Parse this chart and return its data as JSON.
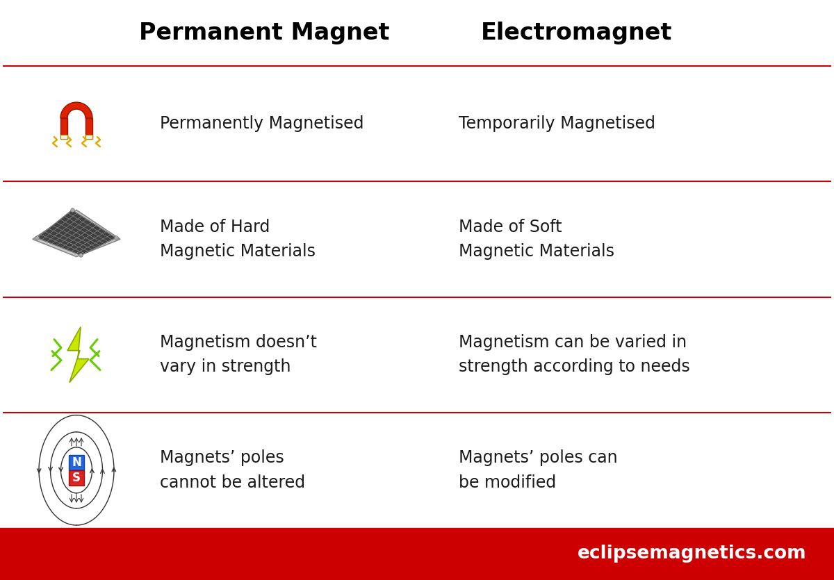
{
  "title_left": "Permanent Magnet",
  "title_right": "Electromagnet",
  "background_color": "#ffffff",
  "footer_bg_color": "#cc0000",
  "footer_text": "eclipsemagnetics.com",
  "footer_text_color": "#ffffff",
  "separator_color": "#cc0000",
  "title_color": "#000000",
  "text_color": "#1a1a1a",
  "rows": [
    {
      "pm_text": "Permanently Magnetised",
      "em_text": "Temporarily Magnetised"
    },
    {
      "pm_text": "Made of Hard\nMagnetic Materials",
      "em_text": "Made of Soft\nMagnetic Materials"
    },
    {
      "pm_text": "Magnetism doesn’t\nvary in strength",
      "em_text": "Magnetism can be varied in\nstrength according to needs"
    },
    {
      "pm_text": "Magnets’ poles\ncannot be altered",
      "em_text": "Magnets’ poles can\nbe modified"
    }
  ],
  "figsize": [
    12.0,
    8.35
  ],
  "dpi": 100
}
